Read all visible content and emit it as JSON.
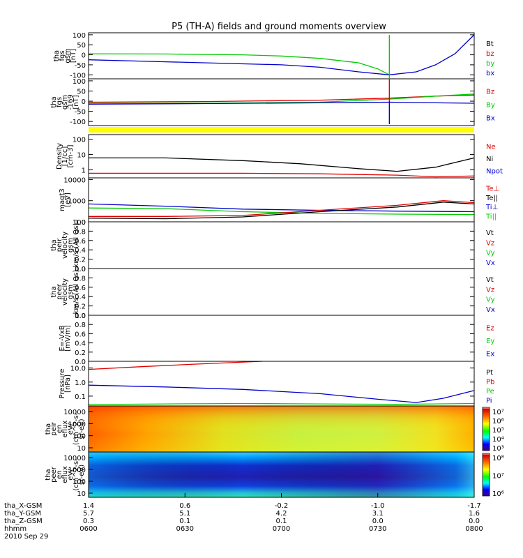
{
  "title": "P5 (TH-A) fields and ground moments overview",
  "colors": {
    "black": "#000000",
    "red": "#e00000",
    "green": "#00cc00",
    "blue": "#0000cc",
    "yellow": "#ffff00"
  },
  "chart_data": [
    {
      "id": "fgs",
      "type": "line",
      "ylabel": [
        "tha",
        "fgs",
        "gsm",
        "[nT]"
      ],
      "yticks": [
        "100",
        "50",
        "0",
        "-50",
        "-100"
      ],
      "ylim": [
        -120,
        110
      ],
      "legend": [
        {
          "label": "Bt",
          "color": "black"
        },
        {
          "label": "bz",
          "color": "red"
        },
        {
          "label": "by",
          "color": "green"
        },
        {
          "label": "bx",
          "color": "blue"
        }
      ],
      "series": [
        {
          "name": "by",
          "color": "green",
          "x": [
            0,
            0.2,
            0.4,
            0.5,
            0.6,
            0.7,
            0.75,
            0.78
          ],
          "y": [
            5,
            4,
            0,
            -6,
            -18,
            -40,
            -70,
            -100
          ]
        },
        {
          "name": "bx",
          "color": "blue",
          "x": [
            0,
            0.2,
            0.4,
            0.5,
            0.6,
            0.7,
            0.78,
            0.85,
            0.9,
            0.95,
            1.0
          ],
          "y": [
            -25,
            -35,
            -45,
            -50,
            -62,
            -85,
            -100,
            -85,
            -50,
            5,
            100
          ]
        }
      ]
    },
    {
      "id": "fgs2",
      "type": "line",
      "ylabel": [
        "tha",
        "fgs",
        "gsm",
        "-169",
        "[nT]"
      ],
      "yticks": [
        "100",
        "50",
        "0",
        "-50",
        "-100"
      ],
      "ylim": [
        -120,
        110
      ],
      "legend": [
        {
          "label": "Bz",
          "color": "red"
        },
        {
          "label": "By",
          "color": "green"
        },
        {
          "label": "Bx",
          "color": "blue"
        }
      ],
      "series": [
        {
          "name": "Bz",
          "color": "red",
          "x": [
            0,
            0.3,
            0.6,
            0.78,
            0.9,
            1.0
          ],
          "y": [
            -5,
            -2,
            5,
            15,
            25,
            30
          ]
        },
        {
          "name": "By",
          "color": "green",
          "x": [
            0,
            0.3,
            0.6,
            0.78,
            0.9,
            1.0
          ],
          "y": [
            -10,
            -10,
            -5,
            10,
            25,
            35
          ]
        },
        {
          "name": "Bx",
          "color": "blue",
          "x": [
            0,
            0.3,
            0.6,
            0.78,
            0.9,
            1.0
          ],
          "y": [
            -15,
            -12,
            -8,
            -5,
            -8,
            -10
          ]
        }
      ]
    },
    {
      "id": "density",
      "type": "line",
      "ylog": true,
      "ylabel": [
        "Density",
        "[1/cc]",
        "[cm-3]"
      ],
      "yticks": [
        "100",
        "10",
        "1"
      ],
      "ylim": [
        0.3,
        200
      ],
      "legend": [
        {
          "label": "Ne",
          "color": "red"
        },
        {
          "label": "Ni",
          "color": "black"
        },
        {
          "label": "Npot",
          "color": "blue"
        }
      ],
      "series": [
        {
          "name": "Ni",
          "color": "black",
          "x": [
            0,
            0.2,
            0.4,
            0.55,
            0.7,
            0.8,
            0.9,
            1.0
          ],
          "y": [
            6,
            6,
            4,
            2.5,
            1.2,
            0.8,
            1.5,
            6
          ]
        },
        {
          "name": "Ne",
          "color": "red",
          "x": [
            0,
            0.2,
            0.4,
            0.6,
            0.8,
            0.9,
            1.0
          ],
          "y": [
            0.6,
            0.6,
            0.6,
            0.55,
            0.45,
            0.35,
            0.4
          ]
        }
      ]
    },
    {
      "id": "temp",
      "type": "line",
      "ylog": true,
      "ylabel": [
        "magt3",
        "[eV]"
      ],
      "yticks": [
        "10000",
        "1000",
        "100"
      ],
      "ylim": [
        100,
        12000
      ],
      "legend": [
        {
          "label": "Te⊥",
          "color": "red"
        },
        {
          "label": "Te||",
          "color": "black"
        },
        {
          "label": "Ti⊥",
          "color": "blue"
        },
        {
          "label": "Ti||",
          "color": "green"
        }
      ],
      "series": [
        {
          "name": "Ti⊥",
          "color": "blue",
          "x": [
            0,
            0.2,
            0.4,
            0.6,
            0.8,
            1.0
          ],
          "y": [
            700,
            550,
            400,
            350,
            320,
            300
          ]
        },
        {
          "name": "Ti||",
          "color": "green",
          "x": [
            0,
            0.2,
            0.4,
            0.6,
            0.8,
            1.0
          ],
          "y": [
            450,
            420,
            300,
            250,
            230,
            220
          ]
        },
        {
          "name": "Te⊥",
          "color": "red",
          "x": [
            0,
            0.2,
            0.4,
            0.6,
            0.8,
            0.92,
            1.0
          ],
          "y": [
            180,
            180,
            200,
            350,
            600,
            1000,
            800
          ]
        },
        {
          "name": "Te||",
          "color": "black",
          "x": [
            0,
            0.2,
            0.4,
            0.6,
            0.8,
            0.92,
            1.0
          ],
          "y": [
            150,
            140,
            170,
            300,
            500,
            850,
            700
          ]
        }
      ]
    },
    {
      "id": "peir",
      "type": "line",
      "ylabel": [
        "tha",
        "peir",
        "velocity",
        "gsm",
        "km/s (All Qs)"
      ],
      "yticks": [
        "1.0",
        "0.8",
        "0.6",
        "0.4",
        "0.2",
        "0.0"
      ],
      "ylim": [
        0,
        1
      ],
      "legend": [
        {
          "label": "Vt",
          "color": "black"
        },
        {
          "label": "Vz",
          "color": "red"
        },
        {
          "label": "Vy",
          "color": "green"
        },
        {
          "label": "Vx",
          "color": "blue"
        }
      ],
      "series": []
    },
    {
      "id": "peer",
      "type": "line",
      "ylabel": [
        "tha",
        "peer",
        "velocity",
        "gsm",
        "km/s (All Qs)"
      ],
      "yticks": [
        "1.0",
        "0.8",
        "0.6",
        "0.4",
        "0.2",
        "0.0"
      ],
      "ylim": [
        0,
        1
      ],
      "legend": [
        {
          "label": "Vt",
          "color": "black"
        },
        {
          "label": "Vz",
          "color": "red"
        },
        {
          "label": "Vy",
          "color": "green"
        },
        {
          "label": "Vx",
          "color": "blue"
        }
      ],
      "series": []
    },
    {
      "id": "efield",
      "type": "line",
      "ylabel": [
        "E=-VxB",
        "[mV/m]"
      ],
      "yticks": [
        "1.0",
        "0.8",
        "0.6",
        "0.4",
        "0.2",
        "0.0"
      ],
      "ylim": [
        0,
        1
      ],
      "legend": [
        {
          "label": "Ez",
          "color": "red"
        },
        {
          "label": "Ey",
          "color": "green"
        },
        {
          "label": "Ex",
          "color": "blue"
        }
      ],
      "series": []
    },
    {
      "id": "pressure",
      "type": "line",
      "ylog": true,
      "ylabel": [
        "Pressure",
        "[nPa]"
      ],
      "yticks": [
        "10.0",
        "1.0",
        "0.1"
      ],
      "ylim": [
        0.02,
        30
      ],
      "legend": [
        {
          "label": "Pt",
          "color": "black"
        },
        {
          "label": "Pb",
          "color": "red"
        },
        {
          "label": "Pe",
          "color": "green"
        },
        {
          "label": "Pi",
          "color": "blue"
        }
      ],
      "series": [
        {
          "name": "Pb",
          "color": "red",
          "x": [
            0,
            0.15,
            0.3,
            0.45
          ],
          "y": [
            8,
            13,
            20,
            30
          ]
        },
        {
          "name": "Pi",
          "color": "blue",
          "x": [
            0,
            0.2,
            0.4,
            0.6,
            0.75,
            0.85,
            0.92,
            1.0
          ],
          "y": [
            0.6,
            0.45,
            0.3,
            0.15,
            0.06,
            0.035,
            0.07,
            0.25
          ]
        },
        {
          "name": "Pe",
          "color": "green",
          "x": [
            0,
            0.2,
            0.4,
            0.6,
            0.8,
            1.0
          ],
          "y": [
            0.025,
            0.028,
            0.03,
            0.028,
            0.026,
            0.03
          ]
        }
      ]
    },
    {
      "id": "peir_spec",
      "type": "heatmap",
      "ylabel": [
        "tha",
        "peir",
        "en",
        "eflux",
        "eV/",
        "(cm^2-s-",
        "sr-eV)"
      ],
      "yticks": [
        "10000",
        "1000",
        "100",
        "10"
      ],
      "colorbar_ticks": [
        "10⁷",
        "10⁶",
        "10⁵",
        "10⁴",
        "10³"
      ]
    },
    {
      "id": "peer_spec",
      "type": "heatmap",
      "ylabel": [
        "tha",
        "peer",
        "en",
        "eflux",
        "eV/",
        "(cm^2-s-",
        "sr-eV)"
      ],
      "yticks": [
        "10000",
        "1000",
        "100",
        "10"
      ],
      "colorbar_ticks": [
        "10⁸",
        "10⁷",
        "10⁶"
      ]
    }
  ],
  "xaxis": {
    "rows": [
      {
        "label": "tha_X-GSM",
        "values": [
          "1.4",
          "0.6",
          "-0.2",
          "-1.0",
          "-1.7"
        ]
      },
      {
        "label": "tha_Y-GSM",
        "values": [
          "5.7",
          "5.1",
          "4.2",
          "3.1",
          "1.6"
        ]
      },
      {
        "label": "tha_Z-GSM",
        "values": [
          "0.3",
          "0.1",
          "0.1",
          "0.0",
          "0.0"
        ]
      },
      {
        "label": "hhmm",
        "values": [
          "0600",
          "0630",
          "0700",
          "0730",
          "0800"
        ]
      }
    ],
    "date": "2010 Sep 29"
  }
}
